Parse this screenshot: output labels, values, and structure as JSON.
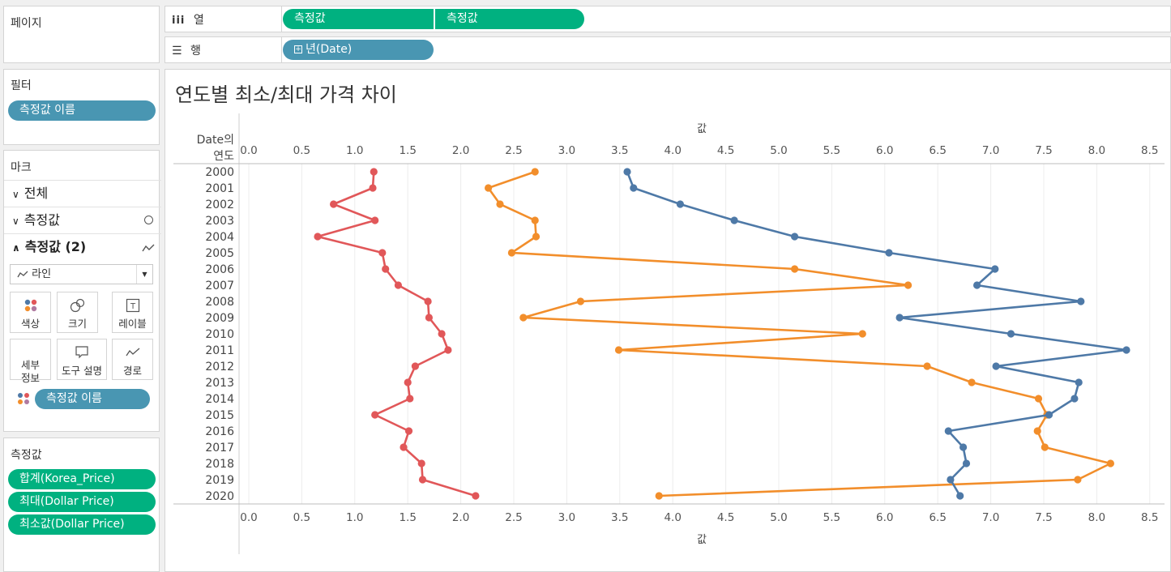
{
  "pages": {
    "title": "페이지"
  },
  "columns_shelf": {
    "label": "열",
    "icon": "columns-icon",
    "pills": [
      "측정값",
      "측정값"
    ]
  },
  "rows_shelf": {
    "label": "행",
    "icon": "rows-icon",
    "pill": "년(Date)"
  },
  "filters": {
    "title": "필터",
    "pill": "측정값 이름"
  },
  "marks": {
    "title": "마크",
    "sections": [
      {
        "label": "전체",
        "expanded": false,
        "icon": ""
      },
      {
        "label": "측정값",
        "expanded": false,
        "icon": "circle-icon"
      },
      {
        "label": "측정값 (2)",
        "expanded": true,
        "icon": "line-icon"
      }
    ],
    "mark_type": "라인",
    "buttons": [
      {
        "label": "색상",
        "icon": "color-icon"
      },
      {
        "label": "크기",
        "icon": "size-icon"
      },
      {
        "label": "레이블",
        "icon": "label-icon"
      },
      {
        "label": "세부\n정보",
        "icon": "detail-icon"
      },
      {
        "label": "도구 설명",
        "icon": "tooltip-icon"
      },
      {
        "label": "경로",
        "icon": "path-icon"
      }
    ],
    "color_pill": "측정값 이름"
  },
  "measure_values": {
    "title": "측정값",
    "pills": [
      "합계(Korea_Price)",
      "최대(Dollar Price)",
      "최소값(Dollar Price)"
    ]
  },
  "chart_data": {
    "type": "line",
    "title": "연도별 최소/최대 가격 차이",
    "xlabel": "값",
    "ylabel": "Date의 연도",
    "xlim": [
      0,
      8.5
    ],
    "xticks": [
      "0.0",
      "0.5",
      "1.0",
      "1.5",
      "2.0",
      "2.5",
      "3.0",
      "3.5",
      "4.0",
      "4.5",
      "5.0",
      "5.5",
      "6.0",
      "6.5",
      "7.0",
      "7.5",
      "8.0",
      "8.5"
    ],
    "categories": [
      "2000",
      "2001",
      "2002",
      "2003",
      "2004",
      "2005",
      "2006",
      "2007",
      "2008",
      "2009",
      "2010",
      "2011",
      "2012",
      "2013",
      "2014",
      "2015",
      "2016",
      "2017",
      "2018",
      "2019",
      "2020"
    ],
    "grid": true,
    "series": [
      {
        "color": "#e15759",
        "values": [
          1.18,
          1.17,
          0.8,
          1.19,
          0.65,
          1.26,
          1.29,
          1.41,
          1.69,
          1.7,
          1.82,
          1.88,
          1.57,
          1.5,
          1.52,
          1.19,
          1.51,
          1.46,
          1.63,
          1.64,
          2.14
        ]
      },
      {
        "color": "#f28e2b",
        "values": [
          2.7,
          2.26,
          2.37,
          2.7,
          2.71,
          2.48,
          5.15,
          6.22,
          3.13,
          2.59,
          5.79,
          3.49,
          6.4,
          6.82,
          7.45,
          7.53,
          7.44,
          7.51,
          8.13,
          7.82,
          3.87
        ]
      },
      {
        "color": "#4e79a7",
        "values": [
          3.57,
          3.63,
          4.07,
          4.58,
          5.15,
          6.04,
          7.04,
          6.87,
          7.85,
          6.14,
          7.19,
          8.28,
          7.05,
          7.83,
          7.79,
          7.55,
          6.6,
          6.74,
          6.77,
          6.62,
          6.71
        ]
      }
    ]
  }
}
